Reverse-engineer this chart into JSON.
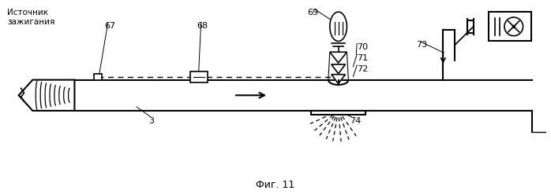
{
  "title": "Фиг. 11",
  "label_source": "Источник\nзажигания",
  "label_3": "3",
  "label_67": "67",
  "label_68": "68",
  "label_69": "69",
  "label_70": "70",
  "label_71": "71",
  "label_72": "72",
  "label_73": "73",
  "label_74": "74",
  "bg_color": "#ffffff",
  "line_color": "#000000"
}
